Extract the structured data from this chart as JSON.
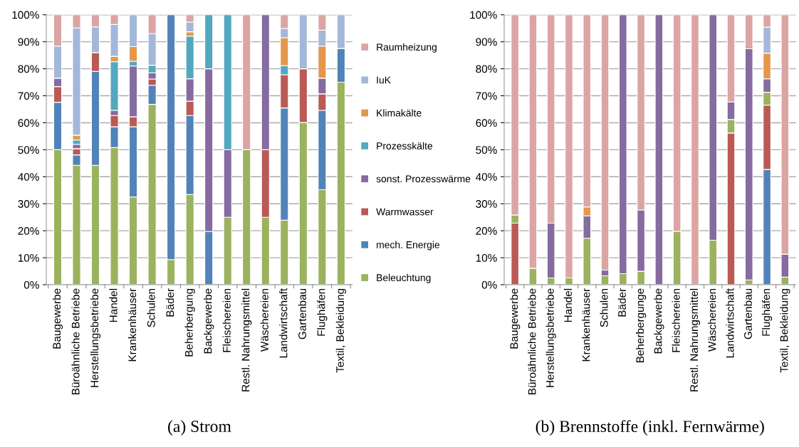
{
  "chart_data": [
    {
      "type": "bar",
      "stacked": true,
      "title": "(a) Strom",
      "legend": "right",
      "grid": "y",
      "ylim": [
        0,
        100
      ],
      "yticks": [
        {
          "value": 0,
          "label": "0%"
        },
        {
          "value": 10,
          "label": "10%"
        },
        {
          "value": 20,
          "label": "20%"
        },
        {
          "value": 30,
          "label": "30%"
        },
        {
          "value": 40,
          "label": "40%"
        },
        {
          "value": 50,
          "label": "50%"
        },
        {
          "value": 60,
          "label": "60%"
        },
        {
          "value": 70,
          "label": "70%"
        },
        {
          "value": 80,
          "label": "80%"
        },
        {
          "value": 90,
          "label": "90%"
        },
        {
          "value": 100,
          "label": "100%"
        }
      ],
      "categories": [
        "Baugewerbe",
        "Büroähnliche Betriebe",
        "Herstellungsbetriebe",
        "Handel",
        "Krankenhäuser",
        "Schulen",
        "Bäder",
        "Beherbergung",
        "Backgewerbe",
        "Fleischereien",
        "Restl. Nahrungsmittel",
        "Wäschereien",
        "Landwirtschaft",
        "Gartenbau",
        "Flughäfen",
        "Textil, Bekleidung"
      ],
      "series": [
        {
          "name": "Beleuchtung",
          "color": "#9bb25e",
          "values": [
            50,
            44.2,
            44.2,
            50.8,
            32.5,
            66.8,
            9.3,
            33.4,
            0,
            25,
            50,
            25,
            23.9,
            60.1,
            35.2,
            75
          ]
        },
        {
          "name": "mech. Energie",
          "color": "#5283b8",
          "values": [
            17.6,
            3.9,
            34.8,
            7.7,
            26,
            7.1,
            90.7,
            29.3,
            19.7,
            0,
            0,
            0,
            41.6,
            0,
            29.4,
            12.5
          ]
        },
        {
          "name": "Warmwasser",
          "color": "#b95a55",
          "values": [
            5.8,
            2.3,
            7,
            4.2,
            3.7,
            2.3,
            0,
            5.3,
            0,
            0,
            0,
            25,
            12.3,
            19.9,
            6.1,
            0
          ]
        },
        {
          "name": "sonst. Prozesswärme",
          "color": "#856b9f",
          "values": [
            3.1,
            1.6,
            0,
            1.9,
            18.8,
            2.3,
            0,
            8.3,
            60.3,
            25,
            0,
            50,
            0,
            0,
            5.8,
            0
          ]
        },
        {
          "name": "Prozesskälte",
          "color": "#52a8be",
          "values": [
            0,
            1.6,
            0,
            18,
            1.8,
            2.8,
            0,
            15.8,
            20,
            50,
            0,
            0,
            3.3,
            0,
            0,
            0
          ]
        },
        {
          "name": "Klimakälte",
          "color": "#e4974b",
          "values": [
            0,
            1.8,
            0,
            2,
            5.4,
            0,
            0,
            1.6,
            0,
            0,
            0,
            0,
            10.4,
            0,
            11.9,
            0
          ]
        },
        {
          "name": "IuK",
          "color": "#a3b8d9",
          "values": [
            11.9,
            39.7,
            9.5,
            11.8,
            11.8,
            11.7,
            0,
            3.6,
            0,
            0,
            0,
            0,
            3.4,
            20,
            5.9,
            12.5
          ]
        },
        {
          "name": "Raumheizung",
          "color": "#dba5a3",
          "values": [
            11.6,
            4.9,
            4.5,
            3.6,
            0,
            7,
            0,
            2.7,
            0,
            0,
            50,
            0,
            5.1,
            0,
            5.7,
            0
          ]
        }
      ]
    },
    {
      "type": "bar",
      "stacked": true,
      "title": "(b) Brennstoffe (inkl. Fernwärme)",
      "grid": "y",
      "ylim": [
        0,
        100
      ],
      "yticks": [
        {
          "value": 0,
          "label": "0%"
        },
        {
          "value": 10,
          "label": "10%"
        },
        {
          "value": 20,
          "label": "20%"
        },
        {
          "value": 30,
          "label": "30%"
        },
        {
          "value": 40,
          "label": "40%"
        },
        {
          "value": 50,
          "label": "50%"
        },
        {
          "value": 60,
          "label": "60%"
        },
        {
          "value": 70,
          "label": "70%"
        },
        {
          "value": 80,
          "label": "80%"
        },
        {
          "value": 90,
          "label": "90%"
        },
        {
          "value": 100,
          "label": "100%"
        }
      ],
      "categories": [
        "Baugewerbe",
        "Büroähnliche Betriebe",
        "Herstellungsbetriebe",
        "Handel",
        "Krankenhäuser",
        "Schulen",
        "Bäder",
        "Beherbergunge",
        "Backgewerbe",
        "Fleischereien",
        "Restl. Nahrungsmittel",
        "Wäschereien",
        "Landwirtschaft",
        "Gartenbau",
        "Flughäfen",
        "Textil, Bekleidung"
      ],
      "series": [
        {
          "color": "#b95a55",
          "values": [
            22.8,
            0,
            0,
            0,
            0,
            0,
            0,
            0,
            0,
            0,
            0,
            0,
            0,
            0,
            0,
            0
          ]
        },
        {
          "color": "#5283b8",
          "values": [
            0,
            0,
            0,
            0,
            0,
            0,
            0,
            0,
            0,
            0,
            0,
            0,
            0,
            0,
            42.7,
            0
          ]
        },
        {
          "color": "#b95a55",
          "values": [
            0,
            0,
            0,
            0,
            0,
            0,
            0,
            0,
            0,
            0,
            0,
            0,
            56.2,
            0,
            23.8,
            0
          ]
        },
        {
          "color": "#9bb25e",
          "values": [
            3,
            6.1,
            2.5,
            2.5,
            17.2,
            3.3,
            4.1,
            5,
            0,
            19.8,
            0,
            16.5,
            5,
            1.8,
            4.8,
            2.8
          ]
        },
        {
          "color": "#856b9f",
          "values": [
            0,
            0,
            20.3,
            0,
            8.3,
            2.1,
            95.9,
            22.7,
            100,
            0,
            0,
            83.5,
            6.5,
            85.6,
            5,
            8.5
          ]
        },
        {
          "color": "#e4974b",
          "values": [
            0,
            0,
            0,
            0,
            3.3,
            0,
            0,
            0,
            0,
            0,
            0,
            0,
            0,
            0,
            9.5,
            0
          ]
        },
        {
          "color": "#a3b8d9",
          "values": [
            0,
            0,
            0,
            0,
            0,
            0,
            0,
            0,
            0,
            0,
            0,
            0,
            0,
            0,
            9.6,
            0
          ]
        },
        {
          "color": "#dba5a3",
          "values": [
            74.2,
            93.9,
            77.2,
            97.5,
            71.2,
            94.6,
            0,
            72.3,
            0,
            80.2,
            100,
            0,
            32.3,
            12.6,
            4.6,
            88.7
          ]
        }
      ]
    }
  ]
}
